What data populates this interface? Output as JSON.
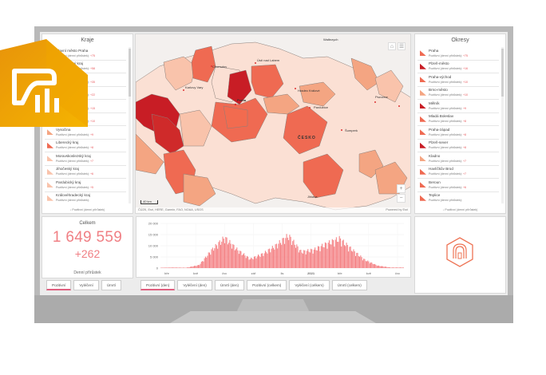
{
  "kraje": {
    "title": "Kraje",
    "items": [
      {
        "name": "Hlavní město Praha",
        "sub": "Pozitivní (denní přírůstek):",
        "value": "+75",
        "color": "#ef6a52"
      },
      {
        "name": "Středočeský kraj",
        "sub": "Pozitivní (denní přírůstek):",
        "value": "+58",
        "color": "#ef6a52"
      },
      {
        "name": "Plzeňský kraj",
        "sub": "Pozitivní (denní přírůstek):",
        "value": "+35",
        "color": "#c81d25"
      },
      {
        "name": "Jihomoravský kraj",
        "sub": "Pozitivní (denní přírůstek):",
        "value": "+22",
        "color": "#f4a582"
      },
      {
        "name": "Ústecký kraj",
        "sub": "Pozitivní (denní přírůstek):",
        "value": "+15",
        "color": "#ef6a52"
      },
      {
        "name": "Olomoucký kraj",
        "sub": "Pozitivní (denní přírůstek):",
        "value": "+10",
        "color": "#f4a582"
      },
      {
        "name": "Vysočina",
        "sub": "Pozitivní (denní přírůstek):",
        "value": "+9",
        "color": "#f4a582"
      },
      {
        "name": "Liberecký kraj",
        "sub": "Pozitivní (denní přírůstek):",
        "value": "+8",
        "color": "#ef6a52"
      },
      {
        "name": "Moravskoslezský kraj",
        "sub": "Pozitivní (denní přírůstek):",
        "value": "+7",
        "color": "#f9c3ab"
      },
      {
        "name": "Jihočeský kraj",
        "sub": "Pozitivní (denní přírůstek):",
        "value": "+6",
        "color": "#f9c3ab"
      },
      {
        "name": "Pardubický kraj",
        "sub": "Pozitivní (denní přírůstek):",
        "value": "+5",
        "color": "#f9c3ab"
      },
      {
        "name": "Královéhradecký kraj",
        "sub": "Pozitivní (denní přírůstek):",
        "value": "",
        "color": "#f9c3ab"
      }
    ],
    "footer": "↓ Pozitivní (denní přírůstek)"
  },
  "okresy": {
    "title": "Okresy",
    "items": [
      {
        "name": "Praha",
        "sub": "Pozitivní (denní přírůstek):",
        "value": "+75",
        "color": "#ef6a52"
      },
      {
        "name": "Plzeň-město",
        "sub": "Pozitivní (denní přírůstek):",
        "value": "+16",
        "color": "#c81d25"
      },
      {
        "name": "Praha-východ",
        "sub": "Pozitivní (denní přírůstek):",
        "value": "+10",
        "color": "#ef6a52"
      },
      {
        "name": "Brno-město",
        "sub": "Pozitivní (denní přírůstek):",
        "value": "+10",
        "color": "#f4a582"
      },
      {
        "name": "Mělník",
        "sub": "Pozitivní (denní přírůstek):",
        "value": "+9",
        "color": "#c81d25"
      },
      {
        "name": "Mladá Boleslav",
        "sub": "Pozitivní (denní přírůstek):",
        "value": "+8",
        "color": "#ef6a52"
      },
      {
        "name": "Praha-západ",
        "sub": "Pozitivní (denní přírůstek):",
        "value": "+8",
        "color": "#ef6a52"
      },
      {
        "name": "Plzeň-sever",
        "sub": "Pozitivní (denní přírůstek):",
        "value": "+8",
        "color": "#c81d25"
      },
      {
        "name": "Kladno",
        "sub": "Pozitivní (denní přírůstek):",
        "value": "+7",
        "color": "#f4a582"
      },
      {
        "name": "Havlíčkův Brod",
        "sub": "Pozitivní (denní přírůstek):",
        "value": "+7",
        "color": "#ef6a52"
      },
      {
        "name": "Beroun",
        "sub": "Pozitivní (denní přírůstek):",
        "value": "+6",
        "color": "#ef6a52"
      },
      {
        "name": "Teplice",
        "sub": "Pozitivní (denní přírůstek):",
        "value": "",
        "color": "#ef6a52"
      }
    ],
    "footer": "↓ Pozitivní (denní přírůstek)"
  },
  "map": {
    "attribution": "ČÚZK, Esri, HERE, Garmin, FAO, NOAA, USGS",
    "powered_by": "Powered by Esri",
    "scale": "40 km",
    "country_label": "ČESKO",
    "labels": [
      "Praha",
      "Pardubice",
      "Kolín",
      "Liberec",
      "Hradec Králové",
      "Karlovy Vary",
      "Chomutov",
      "Ústí nad Labem",
      "Mladá Boleslav",
      "Jihlava",
      "Tábor",
      "Wałbrzych",
      "Pszczew",
      "Nysa",
      "Šumperk"
    ],
    "zoom_in": "+",
    "zoom_out": "−"
  },
  "kpi": {
    "title": "Celkem",
    "total": "1 649 559",
    "delta": "+262",
    "subtitle": "Denní přírůstek",
    "tabs": [
      "Pozitivní",
      "Vyléčení",
      "Úmrtí"
    ],
    "active_tab": 0
  },
  "chart_tabs": {
    "tabs": [
      "Pozitivní (den)",
      "Vyléčení (den)",
      "Úmrtí (den)",
      "Pozitivní (celkem)",
      "Vyléčení (celkem)",
      "Úmrtí (celkem)"
    ],
    "active_tab": 0
  },
  "chart_data": {
    "type": "bar",
    "title": "",
    "xlabel": "",
    "ylabel": "",
    "ylim": [
      0,
      20000
    ],
    "yticks": [
      "0",
      "5 000",
      "10 000",
      "15 000",
      "20 000"
    ],
    "xticks": [
      "bře",
      "kvě",
      "čvc",
      "zář",
      "lis",
      "2021",
      "bře",
      "kvě",
      "čvc"
    ],
    "grid": true,
    "series": [
      {
        "name": "Pozitivní (den)",
        "color": "#f47c7f",
        "x": [
          "bře",
          "kvě",
          "čvc",
          "zář",
          "říj-a",
          "říj-b",
          "lis-a",
          "lis-b",
          "pro-a",
          "pro-b",
          "2021",
          "led-b",
          "úno-a",
          "úno-b",
          "bře",
          "bře-b",
          "dub",
          "kvě",
          "čvn",
          "čvc"
        ],
        "values": [
          200,
          300,
          200,
          1500,
          9000,
          15000,
          9000,
          4500,
          7000,
          11000,
          16000,
          8000,
          9000,
          12000,
          14500,
          9000,
          4000,
          1200,
          300,
          300
        ]
      }
    ]
  },
  "brand": {
    "badge_color": "#f0a500",
    "logo_color": "#ee7455"
  }
}
